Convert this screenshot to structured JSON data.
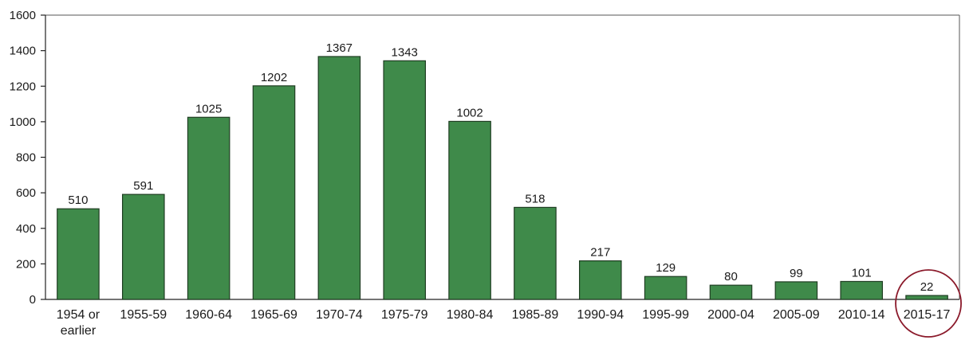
{
  "chart_data": {
    "type": "bar",
    "categories": [
      "1954 or earlier",
      "1955-59",
      "1960-64",
      "1965-69",
      "1970-74",
      "1975-79",
      "1980-84",
      "1985-89",
      "1990-94",
      "1995-99",
      "2000-04",
      "2005-09",
      "2010-14",
      "2015-17"
    ],
    "category_lines": [
      [
        "1954 or",
        "earlier"
      ],
      [
        "1955-59"
      ],
      [
        "1960-64"
      ],
      [
        "1965-69"
      ],
      [
        "1970-74"
      ],
      [
        "1975-79"
      ],
      [
        "1980-84"
      ],
      [
        "1985-89"
      ],
      [
        "1990-94"
      ],
      [
        "1995-99"
      ],
      [
        "2000-04"
      ],
      [
        "2005-09"
      ],
      [
        "2010-14"
      ],
      [
        "2015-17"
      ]
    ],
    "values": [
      510,
      591,
      1025,
      1202,
      1367,
      1343,
      1002,
      518,
      217,
      129,
      80,
      99,
      101,
      22
    ],
    "yticks": [
      0,
      200,
      400,
      600,
      800,
      1000,
      1200,
      1400,
      1600
    ],
    "ylim": [
      0,
      1600
    ],
    "bar_color": "#3f8a4a",
    "highlight": {
      "category": "2015-17",
      "shape": "circle",
      "color": "#8b1a2b"
    },
    "grid": false,
    "title": "",
    "xlabel": "",
    "ylabel": ""
  }
}
